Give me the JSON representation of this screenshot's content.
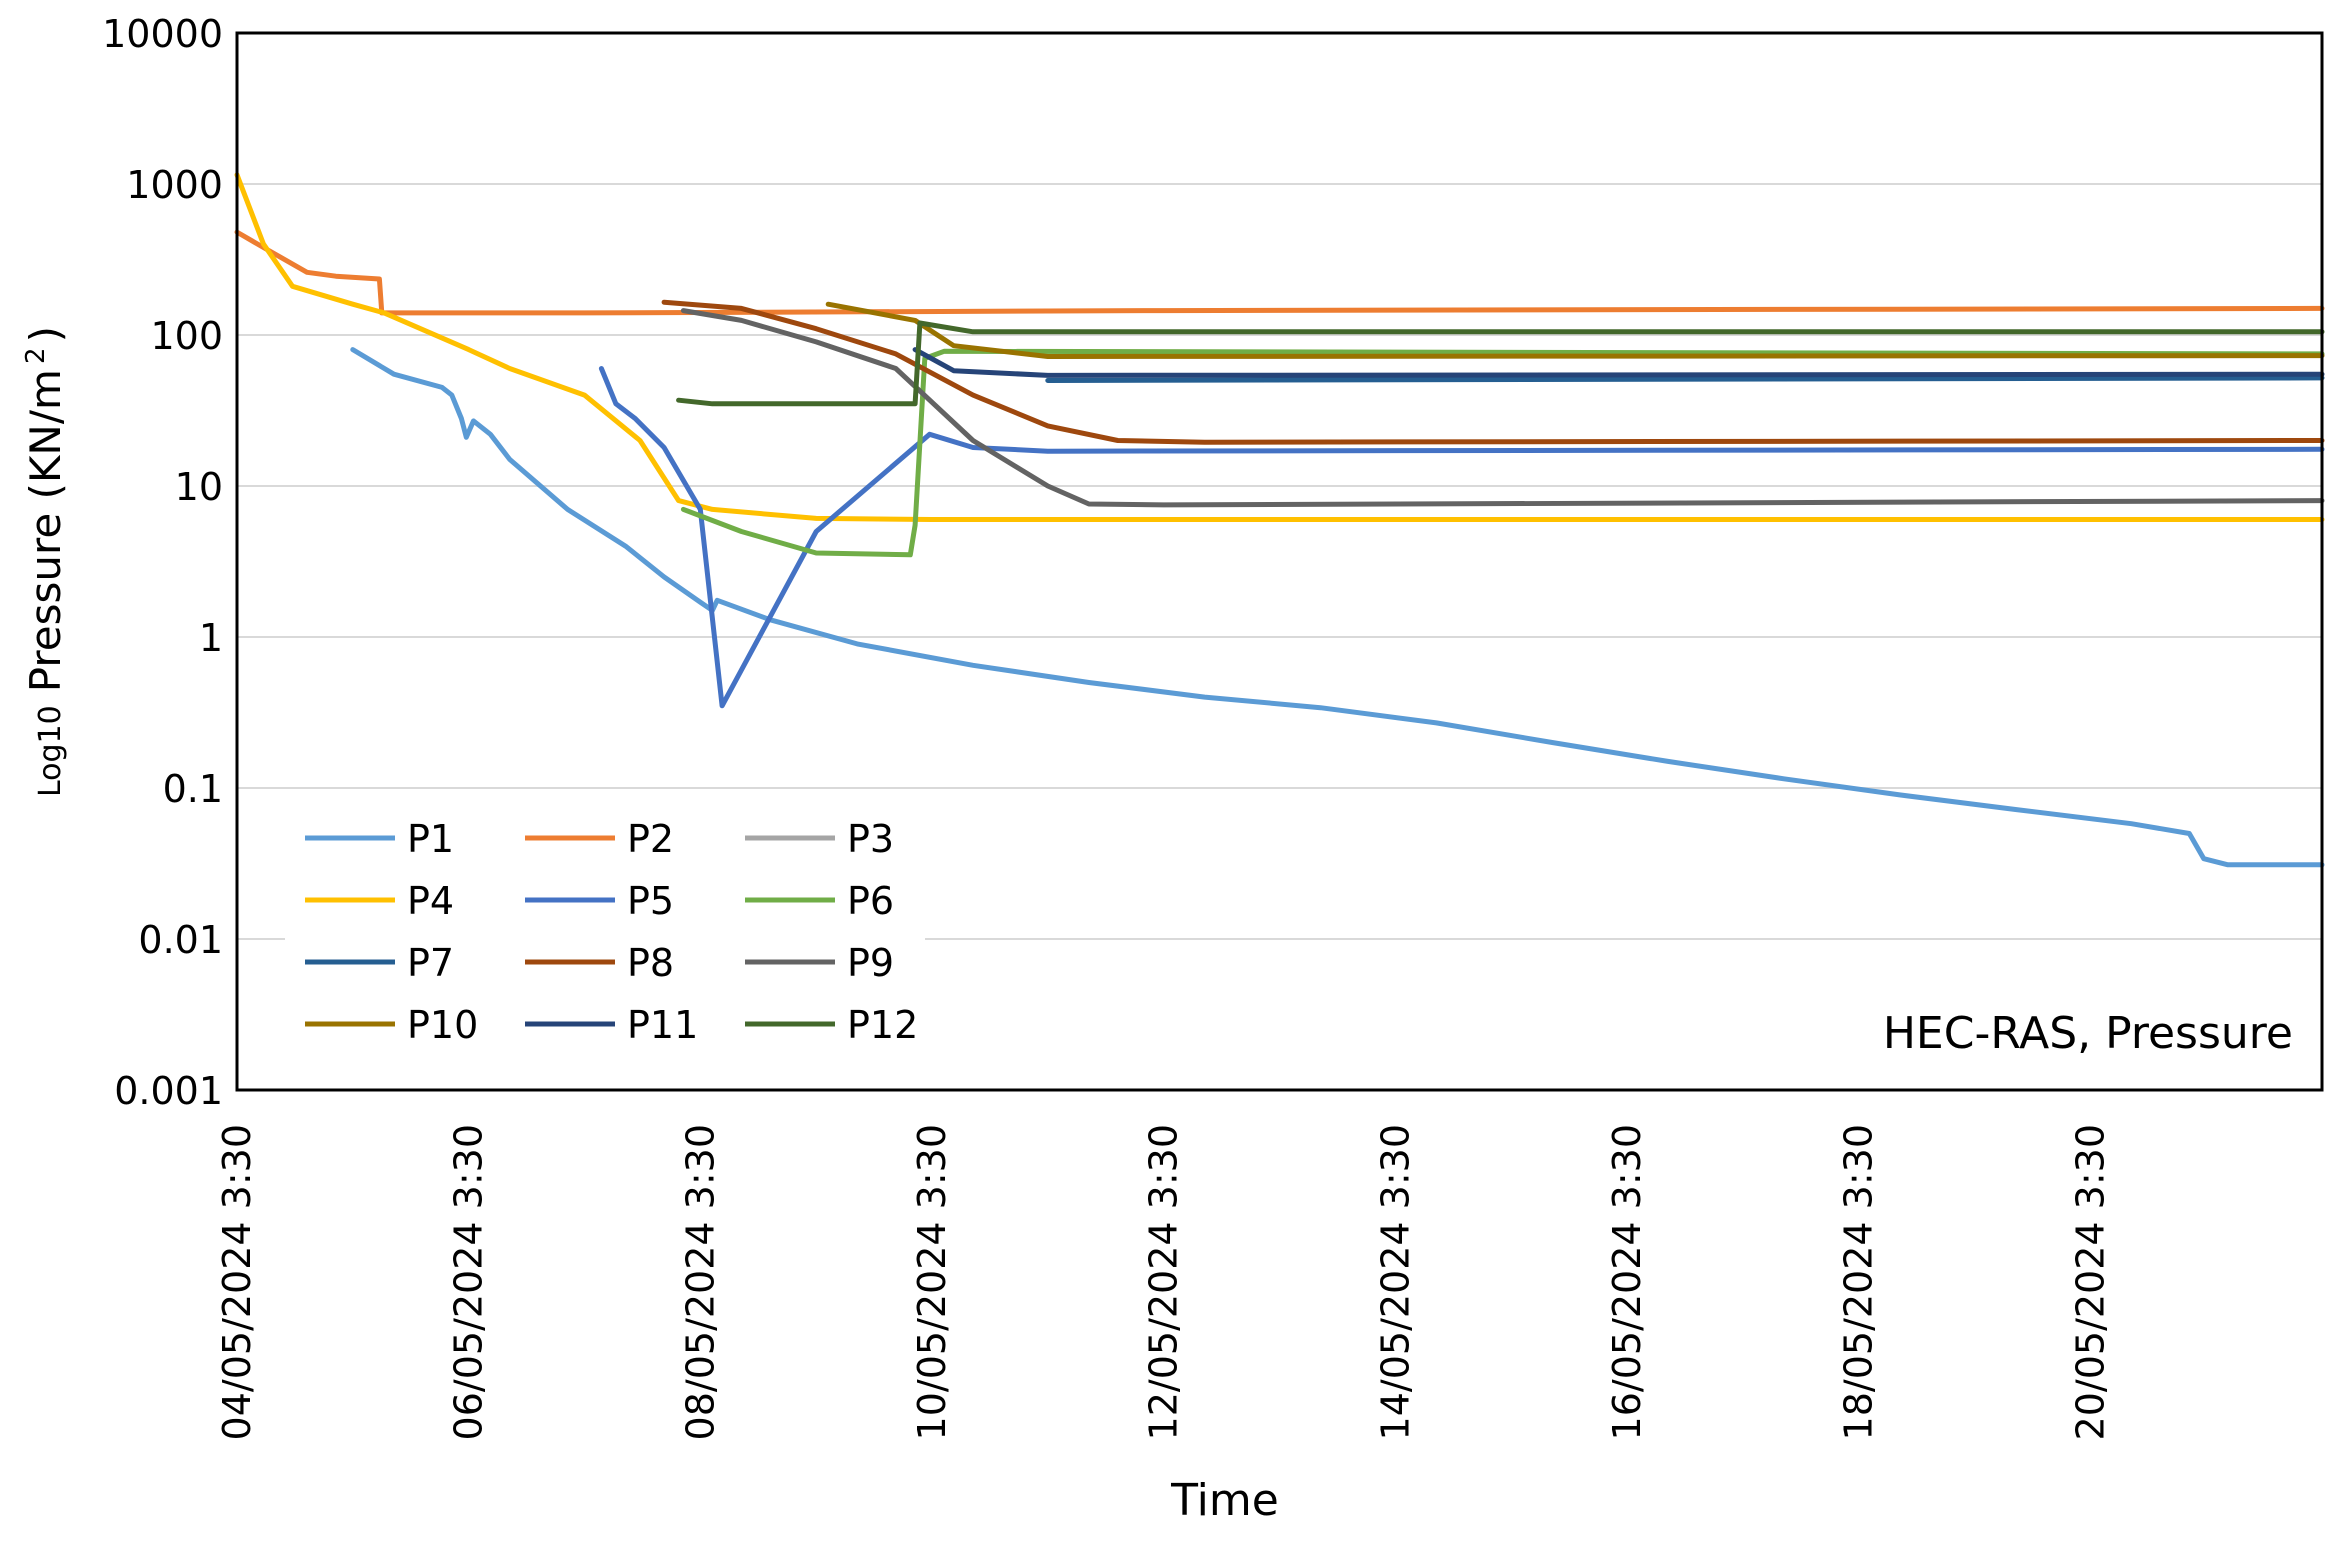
{
  "chart_data": {
    "type": "line",
    "title": "",
    "annotation": "HEC-RAS, Pressure",
    "xlabel": "Time",
    "ylabel_prefix": "Log10",
    "ylabel_main": "Pressure (KN/m",
    "ylabel_sup": "2",
    "ylabel_close": ")",
    "x_scale": "time (date axis)",
    "y_scale": "log10",
    "x_range": [
      "04/05/2024 3:30",
      "22/05/2024 3:30"
    ],
    "ylim": [
      0.001,
      10000
    ],
    "grid": "horizontal major gridlines",
    "legend_position": "bottom-left, inside plot area, 3 columns",
    "x_ticks": [
      "04/05/2024 3:30",
      "06/05/2024 3:30",
      "08/05/2024 3:30",
      "10/05/2024 3:30",
      "12/05/2024 3:30",
      "14/05/2024 3:30",
      "16/05/2024 3:30",
      "18/05/2024 3:30",
      "20/05/2024 3:30"
    ],
    "y_ticks": [
      "10000",
      "1000",
      "100",
      "10",
      "1",
      "0.1",
      "0.01",
      "0.001"
    ],
    "series": [
      {
        "name": "P1",
        "color": "#5b9bd5",
        "points": [
          [
            "05/05/2024 3:30",
            80
          ],
          [
            "05/05/2024 12:00",
            55
          ],
          [
            "05/05/2024 22:00",
            45
          ],
          [
            "06/05/2024 0:00",
            40
          ],
          [
            "06/05/2024 2:00",
            28
          ],
          [
            "06/05/2024 3:00",
            21
          ],
          [
            "06/05/2024 4:30",
            27
          ],
          [
            "06/05/2024 8:00",
            22
          ],
          [
            "06/05/2024 12:00",
            15
          ],
          [
            "07/05/2024 0:00",
            7
          ],
          [
            "07/05/2024 12:00",
            4
          ],
          [
            "07/05/2024 20:00",
            2.5
          ],
          [
            "08/05/2024 3:30",
            1.7
          ],
          [
            "08/05/2024 6:00",
            1.5
          ],
          [
            "08/05/2024 7:00",
            1.75
          ],
          [
            "08/05/2024 18:00",
            1.3
          ],
          [
            "09/05/2024 12:00",
            0.9
          ],
          [
            "10/05/2024 12:00",
            0.65
          ],
          [
            "11/05/2024 12:00",
            0.5
          ],
          [
            "12/05/2024 12:00",
            0.4
          ],
          [
            "13/05/2024 12:00",
            0.34
          ],
          [
            "14/05/2024 12:00",
            0.27
          ],
          [
            "15/05/2024 12:00",
            0.2
          ],
          [
            "16/05/2024 12:00",
            0.15
          ],
          [
            "17/05/2024 12:00",
            0.115
          ],
          [
            "18/05/2024 12:00",
            0.09
          ],
          [
            "19/05/2024 12:00",
            0.072
          ],
          [
            "20/05/2024 12:00",
            0.058
          ],
          [
            "21/05/2024 0:00",
            0.05
          ],
          [
            "21/05/2024 3:00",
            0.034
          ],
          [
            "21/05/2024 8:00",
            0.031
          ],
          [
            "22/05/2024 3:30",
            0.031
          ]
        ]
      },
      {
        "name": "P2",
        "color": "#ed7d31",
        "points": [
          [
            "04/05/2024 3:30",
            480
          ],
          [
            "04/05/2024 9:00",
            380
          ],
          [
            "04/05/2024 18:00",
            260
          ],
          [
            "05/05/2024 0:00",
            245
          ],
          [
            "05/05/2024 9:00",
            235
          ],
          [
            "05/05/2024 9:30",
            140
          ],
          [
            "07/05/2024 3:30",
            140
          ],
          [
            "12/05/2024 3:30",
            145
          ],
          [
            "22/05/2024 3:30",
            150
          ]
        ]
      },
      {
        "name": "P3",
        "color": "#a5a5a5",
        "points": []
      },
      {
        "name": "P4",
        "color": "#ffc000",
        "points": [
          [
            "04/05/2024 3:30",
            1150
          ],
          [
            "04/05/2024 9:00",
            400
          ],
          [
            "04/05/2024 15:00",
            210
          ],
          [
            "05/05/2024 3:30",
            160
          ],
          [
            "05/05/2024 10:00",
            140
          ],
          [
            "06/05/2024 3:30",
            80
          ],
          [
            "06/05/2024 12:00",
            60
          ],
          [
            "07/05/2024 3:30",
            40
          ],
          [
            "07/05/2024 15:00",
            20
          ],
          [
            "07/05/2024 23:00",
            8
          ],
          [
            "08/05/2024 6:00",
            7
          ],
          [
            "09/05/2024 3:30",
            6.1
          ],
          [
            "10/05/2024 3:30",
            6
          ],
          [
            "22/05/2024 3:30",
            6
          ]
        ]
      },
      {
        "name": "P5",
        "color": "#4472c4",
        "points": [
          [
            "07/05/2024 7:00",
            60
          ],
          [
            "07/05/2024 10:00",
            35
          ],
          [
            "07/05/2024 14:00",
            28
          ],
          [
            "07/05/2024 20:00",
            18
          ],
          [
            "08/05/2024 3:30",
            7
          ],
          [
            "08/05/2024 8:00",
            0.35
          ],
          [
            "09/05/2024 3:30",
            5
          ],
          [
            "10/05/2024 3:00",
            22
          ],
          [
            "10/05/2024 12:00",
            18
          ],
          [
            "11/05/2024 3:30",
            17
          ],
          [
            "22/05/2024 3:30",
            17.5
          ]
        ]
      },
      {
        "name": "P6",
        "color": "#70ad47",
        "points": [
          [
            "08/05/2024 0:00",
            7
          ],
          [
            "08/05/2024 12:00",
            5
          ],
          [
            "09/05/2024 3:30",
            3.6
          ],
          [
            "09/05/2024 23:00",
            3.5
          ],
          [
            "10/05/2024 0:00",
            5.5
          ],
          [
            "10/05/2024 2:00",
            70
          ],
          [
            "10/05/2024 6:00",
            78
          ],
          [
            "22/05/2024 3:30",
            75
          ]
        ]
      },
      {
        "name": "P7",
        "color": "#255e91",
        "points": [
          [
            "11/05/2024 3:30",
            50
          ],
          [
            "22/05/2024 3:30",
            52
          ]
        ]
      },
      {
        "name": "P8",
        "color": "#9e480e",
        "points": [
          [
            "07/05/2024 20:00",
            165
          ],
          [
            "08/05/2024 12:00",
            150
          ],
          [
            "09/05/2024 3:30",
            110
          ],
          [
            "09/05/2024 20:00",
            75
          ],
          [
            "10/05/2024 12:00",
            40
          ],
          [
            "11/05/2024 3:30",
            25
          ],
          [
            "11/05/2024 18:00",
            20
          ],
          [
            "12/05/2024 12:00",
            19.5
          ],
          [
            "22/05/2024 3:30",
            20
          ]
        ]
      },
      {
        "name": "P9",
        "color": "#636363",
        "points": [
          [
            "08/05/2024 0:00",
            145
          ],
          [
            "08/05/2024 12:00",
            125
          ],
          [
            "09/05/2024 3:30",
            90
          ],
          [
            "09/05/2024 20:00",
            60
          ],
          [
            "10/05/2024 12:00",
            20
          ],
          [
            "11/05/2024 3:30",
            10
          ],
          [
            "11/05/2024 12:00",
            7.6
          ],
          [
            "12/05/2024 3:30",
            7.5
          ],
          [
            "22/05/2024 3:30",
            8
          ]
        ]
      },
      {
        "name": "P10",
        "color": "#997300",
        "points": [
          [
            "09/05/2024 6:00",
            160
          ],
          [
            "10/05/2024 0:00",
            125
          ],
          [
            "10/05/2024 8:00",
            85
          ],
          [
            "11/05/2024 3:30",
            72
          ],
          [
            "22/05/2024 3:30",
            73
          ]
        ]
      },
      {
        "name": "P11",
        "color": "#264478",
        "points": [
          [
            "10/05/2024 0:00",
            80
          ],
          [
            "10/05/2024 8:00",
            58
          ],
          [
            "11/05/2024 3:30",
            54
          ],
          [
            "22/05/2024 3:30",
            55
          ]
        ]
      },
      {
        "name": "P12",
        "color": "#43682b",
        "points": [
          [
            "07/05/2024 23:00",
            37
          ],
          [
            "08/05/2024 6:00",
            35
          ],
          [
            "09/05/2024 3:30",
            35
          ],
          [
            "10/05/2024 0:00",
            35
          ],
          [
            "10/05/2024 1:00",
            120
          ],
          [
            "10/05/2024 12:00",
            105
          ],
          [
            "22/05/2024 3:30",
            105
          ]
        ]
      }
    ]
  }
}
